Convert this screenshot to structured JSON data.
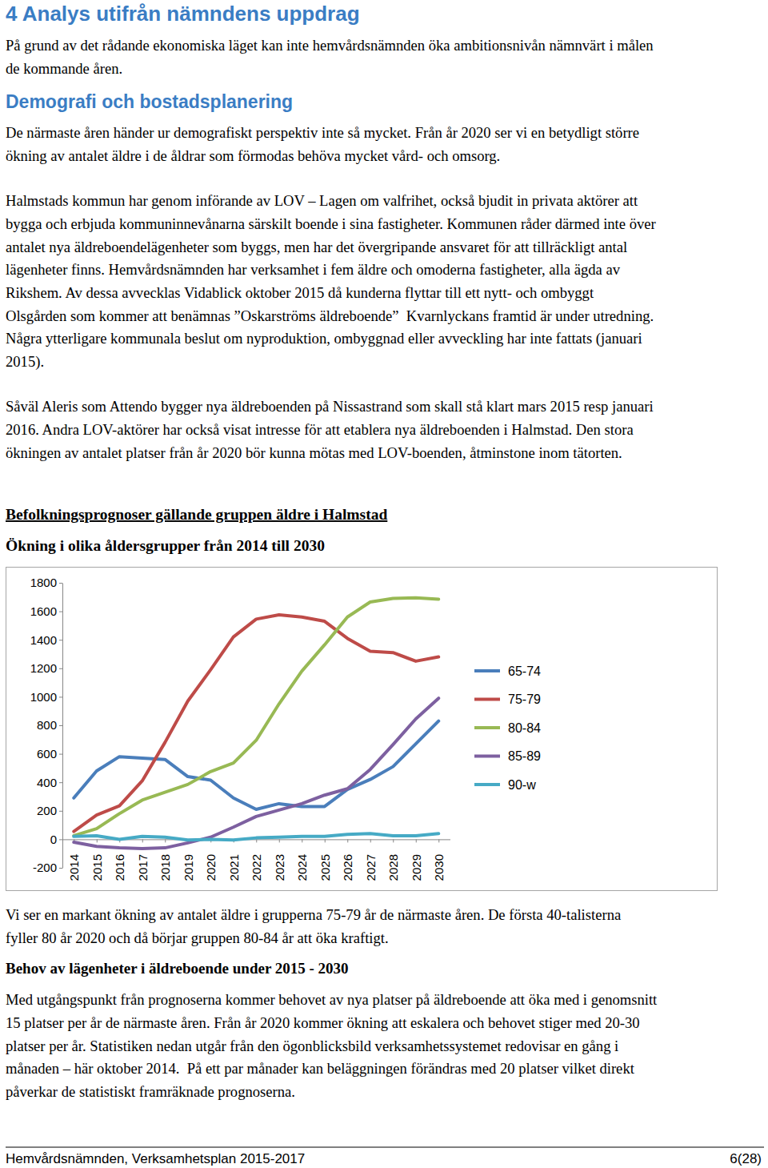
{
  "body_top": [
    {
      "kind": "heading",
      "lines": [
        "4 Analys utifrån nämndens uppdrag"
      ]
    },
    {
      "kind": "paragraph",
      "lines": [
        "På grund av det rådande ekonomiska läget kan inte hemvårdsnämnden öka ambitionsnivån nämnvärt i målen",
        "de kommande åren."
      ]
    },
    {
      "kind": "subheading",
      "lines": [
        "Demografi och bostadsplanering"
      ]
    },
    {
      "kind": "paragraph",
      "lines": [
        "De närmaste åren händer ur demografiskt perspektiv inte så mycket. Från år 2020 ser vi en betydligt större",
        "ökning av antalet äldre i de åldrar som förmodas behöva mycket vård- och omsorg."
      ]
    },
    {
      "kind": "paragraph",
      "lines": [
        "Halmstads kommun har genom införande av LOV – Lagen om valfrihet, också bjudit in privata aktörer att",
        "bygga och erbjuda kommuninnevånarna särskilt boende i sina fastigheter. Kommunen råder därmed inte över",
        "antalet nya äldreboendelägenheter som byggs, men har det övergripande ansvaret för att tillräckligt antal",
        "lägenheter finns. Hemvårdsnämnden har verksamhet i fem äldre och omoderna fastigheter, alla ägda av",
        "Rikshem. Av dessa avvecklas Vidablick oktober 2015 då kunderna flyttar till ett nytt- och ombyggt",
        "Olsgården som kommer att benämnas ”Oskarströms äldreboende”  Kvarnlyckans framtid är under utredning.",
        "Några ytterligare kommunala beslut om nyproduktion, ombyggnad eller avveckling har inte fattats (januari",
        "2015)."
      ]
    },
    {
      "kind": "paragraph",
      "lines": [
        "Såväl Aleris som Attendo bygger nya äldreboenden på Nissastrand som skall stå klart mars 2015 resp januari",
        "2016. Andra LOV-aktörer har också visat intresse för att etablera nya äldreboenden i Halmstad. Den stora",
        "ökningen av antalet platser från år 2020 bör kunna mötas med LOV-boenden, åtminstone inom tätorten."
      ]
    }
  ],
  "chart_data": {
    "type": "line",
    "title": "Befolkningsprognoser gällande gruppen äldre i Halmstad",
    "subtitle": "Ökning i olika åldersgrupper från 2014 till 2030",
    "categories": [
      "2014",
      "2015",
      "2016",
      "2017",
      "2018",
      "2019",
      "2020",
      "2021",
      "2022",
      "2023",
      "2024",
      "2025",
      "2026",
      "2027",
      "2028",
      "2029",
      "2030"
    ],
    "series": [
      {
        "name": "65-74",
        "color": "#4a7ebb",
        "values": [
          290,
          480,
          580,
          570,
          560,
          440,
          415,
          290,
          210,
          250,
          230,
          230,
          350,
          420,
          510,
          670,
          830
        ]
      },
      {
        "name": "75-79",
        "color": "#be4b48",
        "values": [
          55,
          170,
          235,
          410,
          680,
          970,
          1190,
          1420,
          1545,
          1575,
          1560,
          1530,
          1410,
          1320,
          1310,
          1250,
          1280
        ]
      },
      {
        "name": "80-84",
        "color": "#98b954",
        "values": [
          25,
          75,
          180,
          275,
          330,
          385,
          475,
          535,
          695,
          950,
          1180,
          1365,
          1560,
          1665,
          1690,
          1695,
          1685
        ]
      },
      {
        "name": "85-89",
        "color": "#7d60a0",
        "values": [
          -20,
          -50,
          -60,
          -65,
          -60,
          -25,
          15,
          85,
          160,
          205,
          250,
          310,
          355,
          490,
          665,
          845,
          990
        ]
      },
      {
        "name": "90-w",
        "color": "#46aac5",
        "values": [
          20,
          25,
          0,
          20,
          15,
          -5,
          0,
          -5,
          10,
          15,
          20,
          20,
          35,
          40,
          25,
          25,
          40
        ]
      }
    ],
    "ylim": [
      -200,
      1800
    ],
    "yticks": [
      -200,
      0,
      200,
      400,
      600,
      800,
      1000,
      1200,
      1400,
      1600,
      1800
    ],
    "grid": false,
    "legend": "right"
  },
  "body_bottom": [
    {
      "kind": "paragraph",
      "lines": [
        "Vi ser en markant ökning av antalet äldre i grupperna 75-79 år de närmaste åren. De första 40-talisterna",
        "fyller 80 år 2020 och då börjar gruppen 80-84 år att öka kraftigt."
      ]
    },
    {
      "kind": "bold",
      "lines": [
        "Behov av lägenheter i äldreboende under 2015 - 2030"
      ]
    },
    {
      "kind": "paragraph",
      "lines": [
        "Med utgångspunkt från prognoserna kommer behovet av nya platser på äldreboende att öka med i genomsnitt",
        "15 platser per år de närmaste åren. Från år 2020 kommer ökning att eskalera och behovet stiger med 20-30",
        "platser per år. Statistiken nedan utgår från den ögonblicksbild verksamhetssystemet redovisar en gång i",
        "månaden – här oktober 2014.  På ett par månader kan beläggningen förändras med 20 platser vilket direkt",
        "påverkar de statistiskt framräknade prognoserna."
      ]
    }
  ],
  "footer": {
    "left": "Hemvårdsnämnden, Verksamhetsplan 2015-2017",
    "right": "6(28)"
  }
}
